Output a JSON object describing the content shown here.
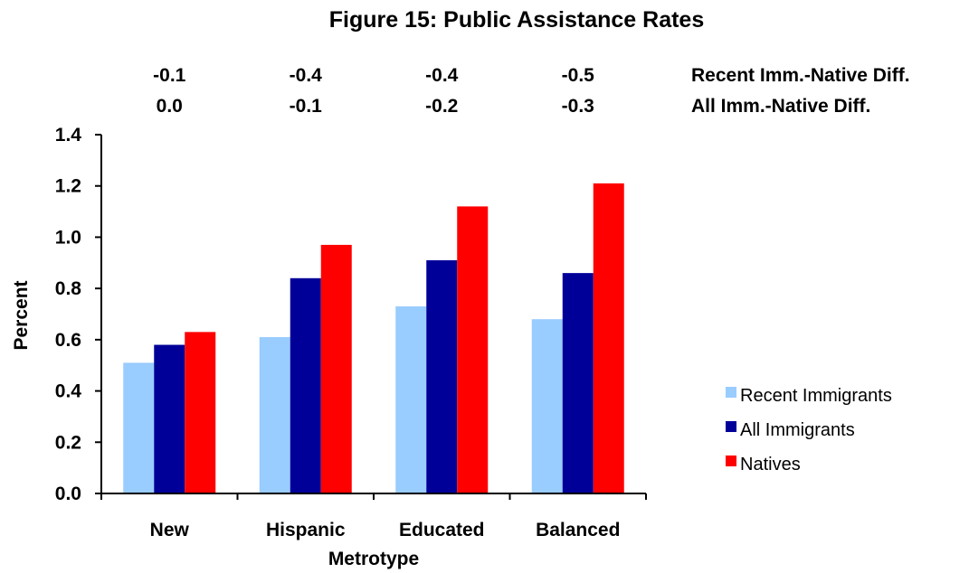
{
  "chart_data": {
    "type": "bar",
    "title": "Figure 15:  Public Assistance Rates",
    "xlabel": "Metrotype",
    "ylabel": "Percent",
    "categories": [
      "New",
      "Hispanic",
      "Educated",
      "Balanced"
    ],
    "series": [
      {
        "name": "Recent Immigrants",
        "color": "#99ccff",
        "values": [
          0.51,
          0.61,
          0.73,
          0.68
        ]
      },
      {
        "name": "All Immigrants",
        "color": "#000099",
        "values": [
          0.58,
          0.84,
          0.91,
          0.86
        ]
      },
      {
        "name": "Natives",
        "color": "#ff0000",
        "values": [
          0.63,
          0.97,
          1.12,
          1.21
        ]
      }
    ],
    "ylim": [
      0,
      1.4
    ],
    "yticks": [
      "0.0",
      "0.2",
      "0.4",
      "0.6",
      "0.8",
      "1.0",
      "1.2",
      "1.4"
    ],
    "grid": false,
    "legend_position": "right",
    "difference_rows": [
      {
        "label": "Recent Imm.-Native Diff.",
        "values": [
          "-0.1",
          "-0.4",
          "-0.4",
          "-0.5"
        ]
      },
      {
        "label": "All Imm.-Native Diff.",
        "values": [
          "0.0",
          "-0.1",
          "-0.2",
          "-0.3"
        ]
      }
    ]
  }
}
